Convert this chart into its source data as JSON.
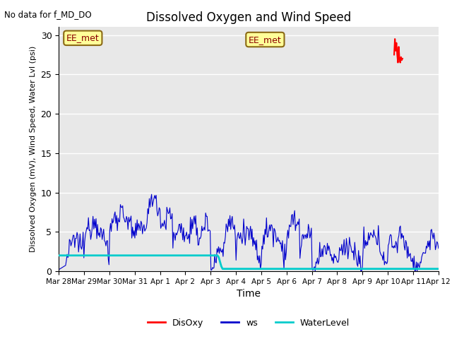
{
  "title": "Dissolved Oxygen and Wind Speed",
  "xlabel": "Time",
  "ylabel": "Dissolved Oxygen (mV), Wind Speed, Water Lvl (psi)",
  "no_data_text": "No data for f_MD_DO",
  "annotation_text": "EE_met",
  "ylim": [
    0,
    31
  ],
  "yticks": [
    0,
    5,
    10,
    15,
    20,
    25,
    30
  ],
  "xlim_start": 0,
  "xlim_end": 15,
  "x_tick_labels": [
    "Mar 28",
    "Mar 29",
    "Mar 30",
    "Mar 31",
    "Apr 1",
    "Apr 2",
    "Apr 3",
    "Apr 4",
    "Apr 5",
    "Apr 6",
    "Apr 7",
    "Apr 8",
    "Apr 9",
    "Apr 10",
    "Apr 11",
    "Apr 12"
  ],
  "bg_color": "#e8e8e8",
  "ws_color": "#0000cc",
  "disoxy_color": "#ff0000",
  "waterlevel_color": "#00cccc",
  "legend_labels": [
    "DisOxy",
    "ws",
    "WaterLevel"
  ],
  "legend_colors": [
    "#ff0000",
    "#0000cc",
    "#00cccc"
  ],
  "disoxy_x": [
    13.25,
    13.28,
    13.31,
    13.34,
    13.37,
    13.4,
    13.43,
    13.46,
    13.49,
    13.52,
    13.55,
    13.58
  ],
  "disoxy_y": [
    27.5,
    29.5,
    28.0,
    29.0,
    27.5,
    26.5,
    28.5,
    27.0,
    26.5,
    27.2,
    26.8,
    27.0
  ],
  "wl_before": 2.0,
  "wl_after": 0.3,
  "wl_transition": 6.3
}
